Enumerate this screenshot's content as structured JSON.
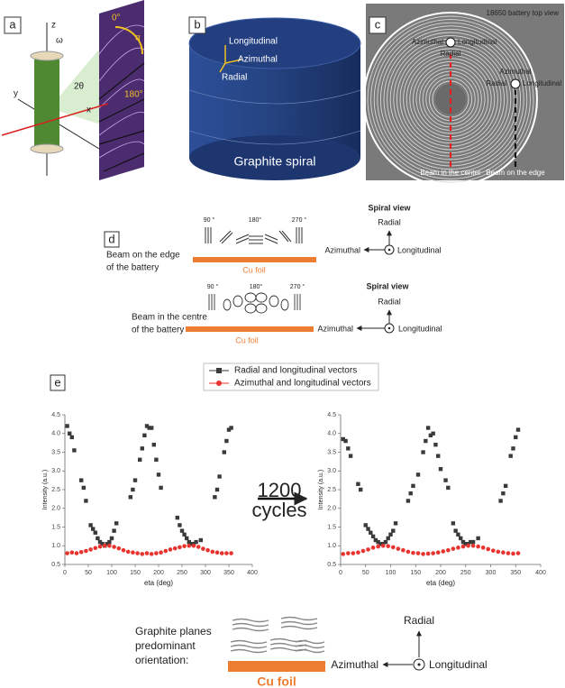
{
  "panel_labels": [
    "a",
    "b",
    "c",
    "d",
    "e"
  ],
  "panel_a": {
    "z": "z",
    "omega": "ω",
    "y": "y",
    "x": "x",
    "two_theta": "2θ",
    "angle_0": "0°",
    "angle_alpha": "α",
    "angle_180": "180°"
  },
  "panel_b": {
    "longitudinal": "Longitudinal",
    "azimuthal": "Azimuthal",
    "radial": "Radial",
    "caption": "Graphite spiral"
  },
  "panel_c": {
    "title": "18650 battery top view",
    "azimuthal_top": "Azimuthal",
    "longitudinal_top": "Longitudinal",
    "radial_top": "Radial",
    "azimuthal_right": "Azimuthal",
    "radial_right": "Radial",
    "longitudinal_right": "Longitudinal",
    "beam_center": "Beam in the center",
    "beam_edge": "Beam on the edge"
  },
  "panel_d": {
    "edge": {
      "beam": [
        "Beam on the edge",
        "of the battery"
      ],
      "angles": [
        "90 °",
        "180°",
        "270 °"
      ],
      "foil": "Cu foil",
      "view_title": "Spiral view",
      "radial": "Radial",
      "azimuthal": "Azimuthal",
      "longitudinal": "Longitudinal"
    },
    "centre": {
      "beam": [
        "Beam in the centre",
        "of the battery"
      ],
      "angles": [
        "90 °",
        "180°",
        "270 °"
      ],
      "foil": "Cu foil",
      "view_title": "Spiral view",
      "radial": "Radial",
      "azimuthal": "Azimuthal",
      "longitudinal": "Longitudinal"
    }
  },
  "arrow_label": [
    "1200",
    "cycles"
  ],
  "summary": {
    "label": [
      "Graphite planes",
      "predominant",
      "orientation:"
    ],
    "foil": "Cu foil",
    "radial": "Radial",
    "azimuthal": "Azimuthal",
    "longitudinal": "Longitudinal"
  },
  "chart_data": [
    {
      "type": "scatter",
      "xlabel": "eta (deg)",
      "ylabel": "Intensity (a.u.)",
      "xlim": [
        0,
        400
      ],
      "xticks": [
        0,
        50,
        100,
        150,
        200,
        250,
        300,
        350,
        400
      ],
      "ylim": [
        0.5,
        4.5
      ],
      "yticks": [
        0.5,
        {
          "value": 1,
          "label": "1.0"
        },
        1.5,
        {
          "value": 2,
          "label": "2.0"
        },
        2.5,
        {
          "value": 3,
          "label": "3.0"
        },
        3.5,
        {
          "value": 4,
          "label": "4.0"
        },
        4.5
      ],
      "series": [
        {
          "name": "Radial and longitudinal vectors",
          "color": "#3a3a3a",
          "marker": "square",
          "x": [
            5,
            10,
            15,
            20,
            35,
            40,
            45,
            55,
            60,
            65,
            70,
            75,
            80,
            85,
            90,
            95,
            100,
            105,
            110,
            140,
            145,
            150,
            160,
            165,
            170,
            175,
            180,
            185,
            190,
            195,
            200,
            205,
            240,
            245,
            250,
            255,
            260,
            265,
            270,
            275,
            280,
            290,
            320,
            325,
            330,
            340,
            345,
            350,
            355
          ],
          "values": [
            4.2,
            4.0,
            3.9,
            3.55,
            2.75,
            2.55,
            2.2,
            1.55,
            1.45,
            1.35,
            1.2,
            1.1,
            1.05,
            1.0,
            1.05,
            1.1,
            1.2,
            1.4,
            1.6,
            2.3,
            2.5,
            2.75,
            3.3,
            3.6,
            3.95,
            4.2,
            4.15,
            4.15,
            3.7,
            3.3,
            2.9,
            2.55,
            1.75,
            1.55,
            1.4,
            1.3,
            1.2,
            1.1,
            1.05,
            1.05,
            1.1,
            1.15,
            2.3,
            2.5,
            2.85,
            3.5,
            3.8,
            4.1,
            4.15
          ]
        },
        {
          "name": "Azimuthal and longitudinal vectors",
          "color": "#e8332e",
          "marker": "circle",
          "x": [
            5,
            15,
            25,
            35,
            45,
            55,
            65,
            75,
            85,
            95,
            105,
            115,
            125,
            135,
            145,
            155,
            165,
            175,
            185,
            195,
            205,
            215,
            225,
            235,
            245,
            255,
            265,
            275,
            285,
            295,
            305,
            315,
            325,
            335,
            345,
            355
          ],
          "values": [
            0.8,
            0.82,
            0.8,
            0.83,
            0.86,
            0.9,
            0.94,
            0.98,
            1.0,
            1.0,
            0.97,
            0.93,
            0.88,
            0.84,
            0.82,
            0.8,
            0.78,
            0.8,
            0.78,
            0.8,
            0.82,
            0.86,
            0.9,
            0.93,
            0.96,
            0.99,
            1.0,
            1.0,
            0.97,
            0.92,
            0.88,
            0.84,
            0.82,
            0.8,
            0.8,
            0.8
          ]
        }
      ]
    },
    {
      "type": "scatter",
      "xlabel": "eta (deg)",
      "ylabel": "Intensity (a.u.)",
      "xlim": [
        0,
        400
      ],
      "xticks": [
        0,
        50,
        100,
        150,
        200,
        250,
        300,
        350,
        400
      ],
      "ylim": [
        0.5,
        4.5
      ],
      "yticks": [
        0.5,
        {
          "value": 1,
          "label": "1.0"
        },
        1.5,
        {
          "value": 2,
          "label": "2.0"
        },
        2.5,
        {
          "value": 3,
          "label": "3.0"
        },
        3.5,
        {
          "value": 4,
          "label": "4.0"
        },
        4.5
      ],
      "series": [
        {
          "color": "#3a3a3a",
          "marker": "square",
          "x": [
            5,
            10,
            15,
            20,
            35,
            40,
            50,
            55,
            60,
            65,
            70,
            75,
            80,
            85,
            90,
            95,
            100,
            105,
            110,
            135,
            140,
            145,
            155,
            165,
            170,
            175,
            180,
            185,
            190,
            195,
            200,
            210,
            215,
            225,
            230,
            235,
            240,
            245,
            250,
            255,
            260,
            265,
            275,
            320,
            325,
            330,
            340,
            345,
            350,
            355
          ],
          "values": [
            3.85,
            3.8,
            3.6,
            3.4,
            2.65,
            2.5,
            1.55,
            1.45,
            1.35,
            1.25,
            1.15,
            1.1,
            1.05,
            1.05,
            1.1,
            1.2,
            1.3,
            1.4,
            1.6,
            2.2,
            2.4,
            2.6,
            2.9,
            3.5,
            3.8,
            4.15,
            3.95,
            4.0,
            3.7,
            3.4,
            3.05,
            2.75,
            2.55,
            1.6,
            1.4,
            1.3,
            1.2,
            1.1,
            1.05,
            1.05,
            1.1,
            1.1,
            1.2,
            2.2,
            2.4,
            2.6,
            3.4,
            3.6,
            3.9,
            4.1
          ]
        },
        {
          "color": "#e8332e",
          "marker": "circle",
          "x": [
            5,
            15,
            25,
            35,
            45,
            55,
            65,
            75,
            85,
            95,
            105,
            115,
            125,
            135,
            145,
            155,
            165,
            175,
            185,
            195,
            205,
            215,
            225,
            235,
            245,
            255,
            265,
            275,
            285,
            295,
            305,
            315,
            325,
            335,
            345,
            355
          ],
          "values": [
            0.78,
            0.8,
            0.8,
            0.82,
            0.86,
            0.9,
            0.95,
            0.98,
            1.0,
            0.99,
            0.96,
            0.92,
            0.88,
            0.84,
            0.81,
            0.8,
            0.78,
            0.79,
            0.8,
            0.82,
            0.85,
            0.88,
            0.92,
            0.95,
            0.98,
            1.0,
            1.0,
            0.98,
            0.95,
            0.91,
            0.87,
            0.84,
            0.82,
            0.8,
            0.79,
            0.8
          ]
        }
      ]
    }
  ]
}
